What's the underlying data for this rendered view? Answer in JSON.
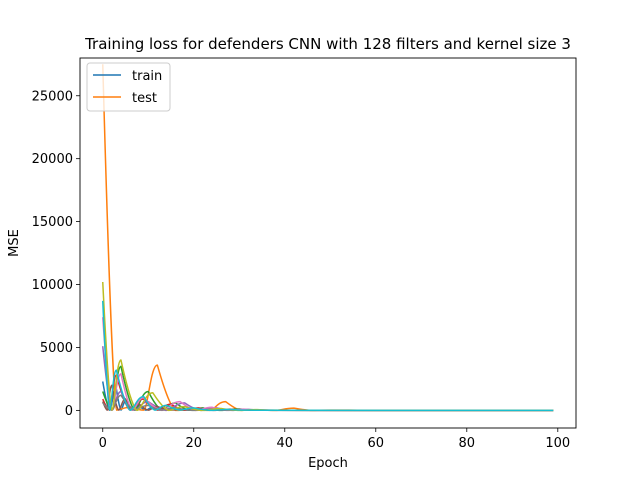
{
  "chart_data": {
    "type": "line",
    "title": "Training loss for defenders CNN with 128 filters and kernel size 3",
    "xlabel": "Epoch",
    "ylabel": "MSE",
    "xlim": [
      -5,
      104
    ],
    "ylim": [
      -1400,
      28000
    ],
    "xticks": [
      0,
      20,
      40,
      60,
      80,
      100
    ],
    "yticks": [
      0,
      5000,
      10000,
      15000,
      20000,
      25000
    ],
    "grid": false,
    "legend": {
      "position": "top-left",
      "entries": [
        "train",
        "test"
      ]
    },
    "series": [
      {
        "name": "train",
        "color": "#1f77b4",
        "peaks": [
          [
            0,
            2300
          ],
          [
            3,
            1700
          ],
          [
            5,
            700
          ],
          [
            8,
            350
          ],
          [
            11,
            250
          ],
          [
            14,
            150
          ]
        ]
      },
      {
        "name": "test",
        "color": "#ff7f0e",
        "peaks": [
          [
            0,
            27500
          ],
          [
            6,
            250
          ],
          [
            12,
            3600
          ],
          [
            20,
            60
          ],
          [
            27,
            700
          ],
          [
            34,
            40
          ],
          [
            42,
            180
          ],
          [
            50,
            20
          ]
        ]
      },
      {
        "color": "#2ca02c",
        "peaks": [
          [
            0,
            1500
          ],
          [
            4,
            3500
          ],
          [
            10,
            1500
          ],
          [
            16,
            600
          ],
          [
            22,
            200
          ],
          [
            30,
            120
          ]
        ]
      },
      {
        "color": "#d62728",
        "peaks": [
          [
            0,
            900
          ],
          [
            3,
            2800
          ],
          [
            9,
            900
          ],
          [
            15,
            500
          ],
          [
            21,
            200
          ],
          [
            28,
            100
          ]
        ]
      },
      {
        "color": "#9467bd",
        "peaks": [
          [
            0,
            5100
          ],
          [
            4,
            1500
          ],
          [
            10,
            700
          ],
          [
            18,
            600
          ],
          [
            25,
            200
          ],
          [
            32,
            80
          ]
        ]
      },
      {
        "color": "#8c564b",
        "peaks": [
          [
            0,
            700
          ],
          [
            2,
            2000
          ],
          [
            5,
            900
          ],
          [
            8,
            500
          ],
          [
            12,
            300
          ],
          [
            18,
            100
          ]
        ]
      },
      {
        "color": "#e377c2",
        "peaks": [
          [
            0,
            7400
          ],
          [
            4,
            2900
          ],
          [
            9,
            1000
          ],
          [
            17,
            700
          ],
          [
            24,
            250
          ],
          [
            31,
            100
          ]
        ]
      },
      {
        "color": "#7f7f7f",
        "peaks": [
          [
            0,
            600
          ],
          [
            4,
            1200
          ],
          [
            10,
            400
          ],
          [
            16,
            200
          ],
          [
            24,
            80
          ]
        ]
      },
      {
        "color": "#bcbd22",
        "peaks": [
          [
            0,
            10200
          ],
          [
            4,
            4000
          ],
          [
            11,
            1400
          ],
          [
            18,
            300
          ],
          [
            26,
            150
          ],
          [
            34,
            60
          ]
        ]
      },
      {
        "color": "#17becf",
        "peaks": [
          [
            0,
            8700
          ],
          [
            3,
            3200
          ],
          [
            9,
            1100
          ],
          [
            14,
            400
          ],
          [
            20,
            200
          ],
          [
            28,
            80
          ]
        ]
      }
    ]
  }
}
